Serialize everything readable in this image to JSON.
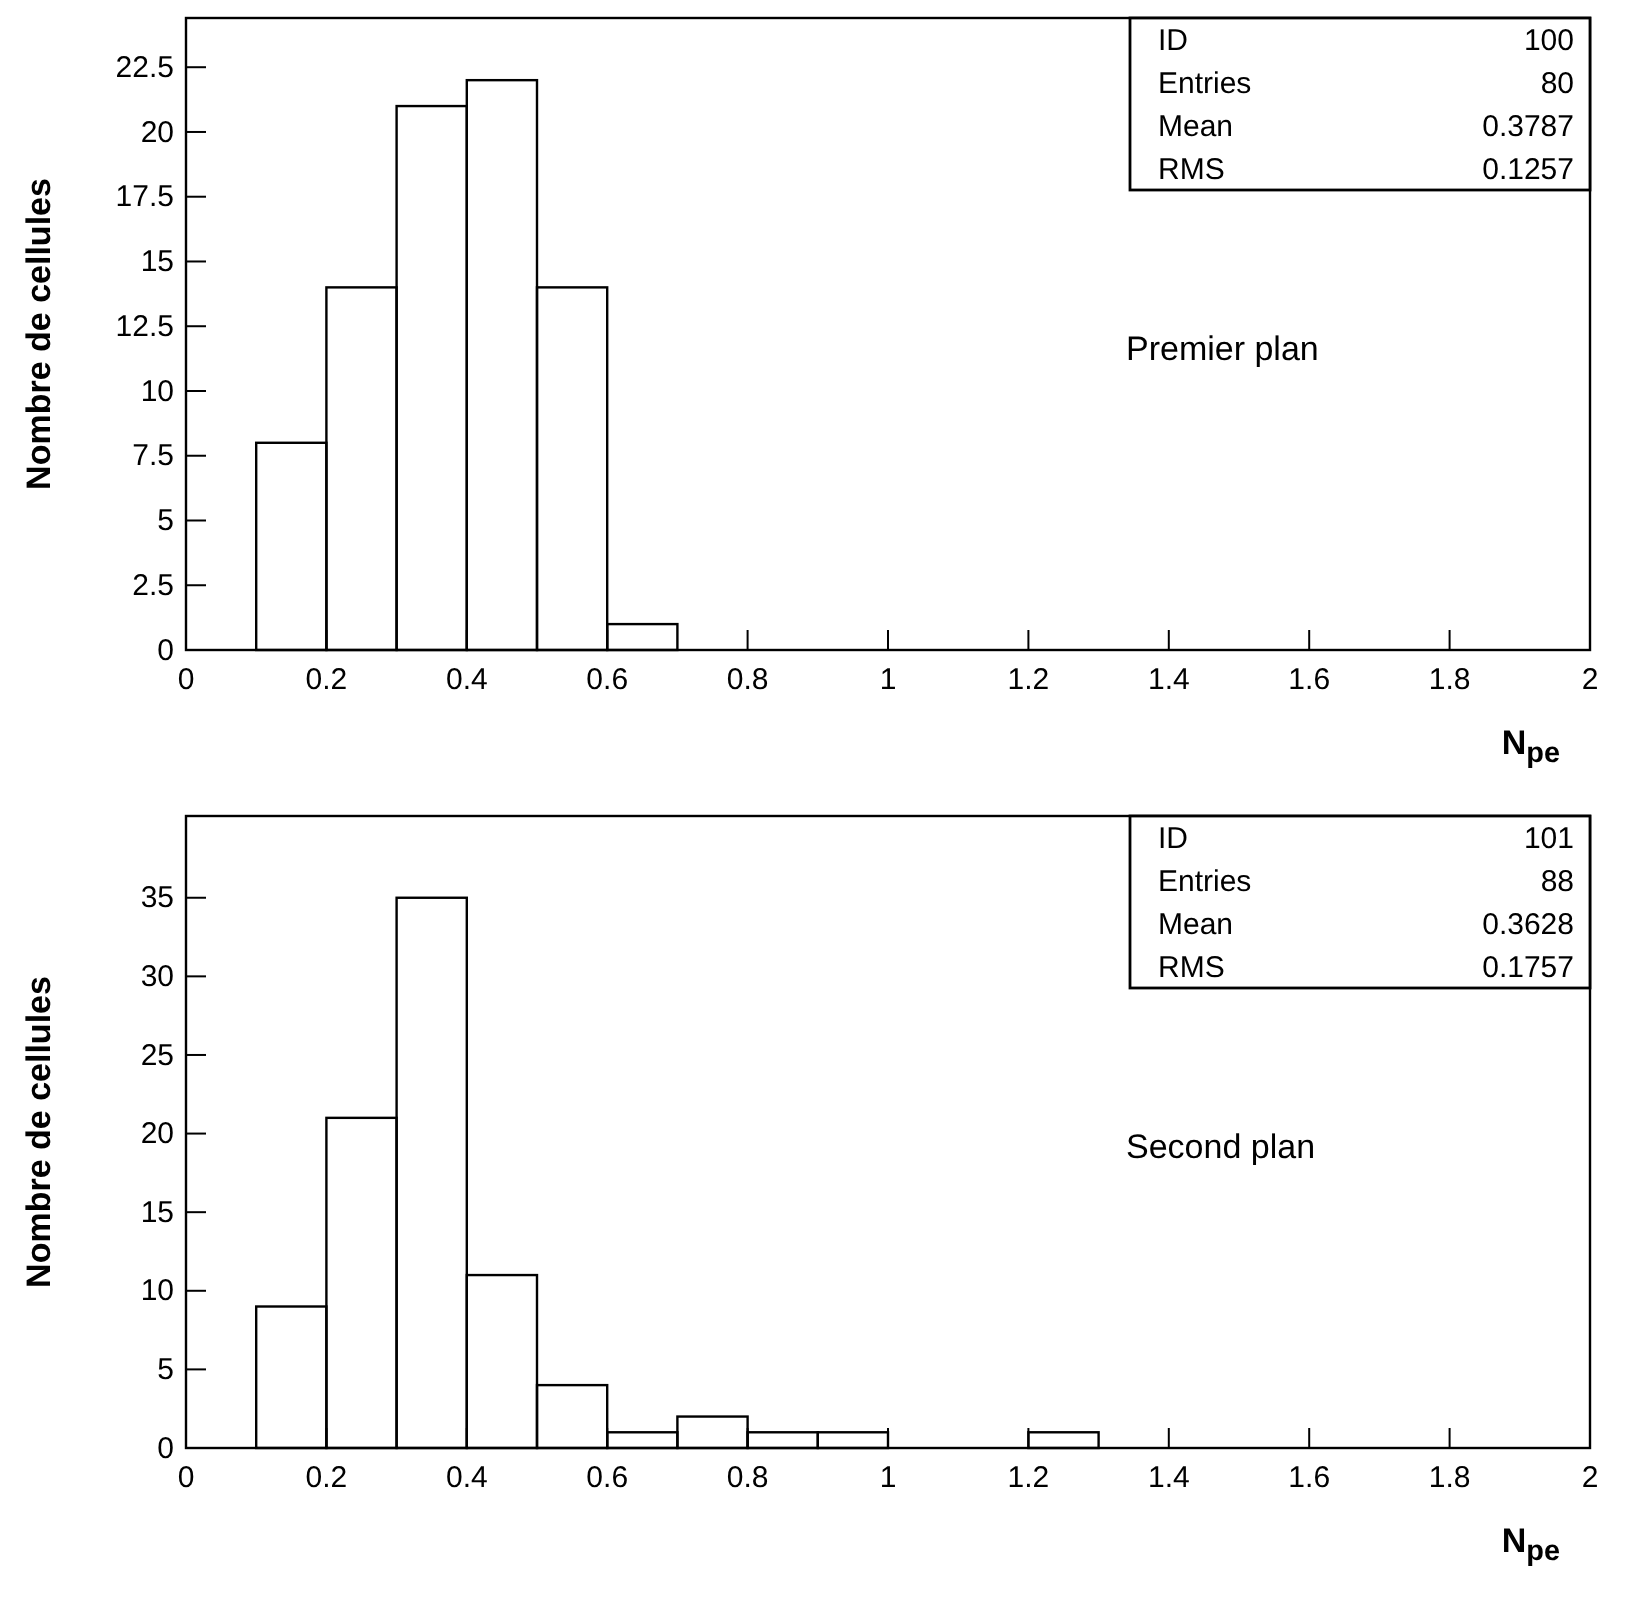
{
  "chart_data": [
    {
      "type": "histogram",
      "title": "Premier plan",
      "xlabel": "N$_{pe}$",
      "ylabel": "Nombre de cellules",
      "bins": [
        0.1,
        0.2,
        0.3,
        0.4,
        0.5,
        0.6,
        0.7
      ],
      "values": [
        8,
        14,
        21,
        22,
        14,
        1
      ],
      "color": "#000000",
      "xlim": [
        0,
        2
      ],
      "xticks": [
        0,
        0.2,
        0.4,
        0.6,
        0.8,
        1,
        1.2,
        1.4,
        1.6,
        1.8,
        2
      ],
      "ylim": [
        0,
        24.4
      ],
      "yticks": [
        0,
        2.5,
        5,
        7.5,
        10,
        12.5,
        15,
        17.5,
        20,
        22.5
      ],
      "grid": false,
      "annotations": [
        "ID",
        "100",
        "Entries",
        "80",
        "Mean",
        "0.3787",
        "RMS",
        "0.1257"
      ]
    },
    {
      "type": "histogram",
      "title": "Second plan",
      "xlabel": "N$_{pe}$",
      "ylabel": "Nombre de cellules",
      "bins": [
        0.1,
        0.2,
        0.3,
        0.4,
        0.5,
        0.6,
        0.7,
        0.8,
        0.9,
        1.0,
        1.1,
        1.2,
        1.3
      ],
      "values": [
        9,
        21,
        35,
        11,
        4,
        1,
        2,
        1,
        1,
        0,
        0,
        1
      ],
      "color": "#000000",
      "xlim": [
        0,
        2
      ],
      "xticks": [
        0,
        0.2,
        0.4,
        0.6,
        0.8,
        1,
        1.2,
        1.4,
        1.6,
        1.8,
        2
      ],
      "ylim": [
        0,
        40.2
      ],
      "yticks": [
        0,
        5,
        10,
        15,
        20,
        25,
        30,
        35
      ],
      "grid": false,
      "annotations": [
        "ID",
        "101",
        "Entries",
        "88",
        "Mean",
        "0.3628",
        "RMS",
        "0.1757"
      ]
    }
  ]
}
